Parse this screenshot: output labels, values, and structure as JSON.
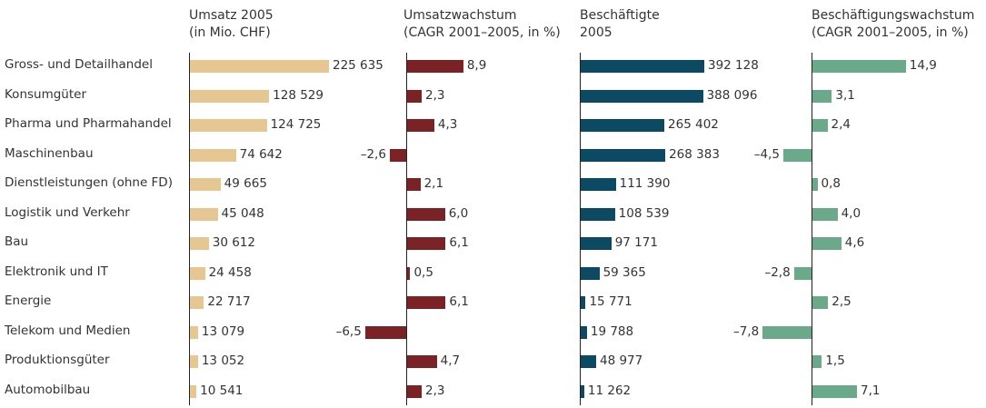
{
  "chart_data": {
    "type": "bar",
    "orientation": "horizontal",
    "categories": [
      "Gross- und Detailhandel",
      "Konsumgüter",
      "Pharma und Pharmahandel",
      "Maschinenbau",
      "Dienstleistungen (ohne FD)",
      "Logistik und Verkehr",
      "Bau",
      "Elektronik und IT",
      "Energie",
      "Telekom und Medien",
      "Produktionsgüter",
      "Automobilbau"
    ],
    "series": [
      {
        "name": "Umsatz 2005\n(in Mio. CHF)",
        "color": "#e6c791",
        "values": [
          225635,
          128529,
          124725,
          74642,
          49665,
          45048,
          30612,
          24458,
          22717,
          13079,
          13052,
          10541
        ],
        "value_labels": [
          "225 635",
          "128 529",
          "124 725",
          "74 642",
          "49 665",
          "45 048",
          "30 612",
          "24 458",
          "22 717",
          "13 079",
          "13 052",
          "10 541"
        ]
      },
      {
        "name": "Umsatzwachstum\n(CAGR 2001–2005, in %)",
        "color": "#7a2226",
        "values": [
          8.9,
          2.3,
          4.3,
          -2.6,
          2.1,
          6.0,
          6.1,
          0.5,
          6.1,
          -6.5,
          4.7,
          2.3
        ],
        "value_labels": [
          "8,9",
          "2,3",
          "4,3",
          "–2,6",
          "2,1",
          "6,0",
          "6,1",
          "0,5",
          "6,1",
          "–6,5",
          "4,7",
          "2,3"
        ]
      },
      {
        "name": "Beschäftigte\n2005",
        "color": "#0c4962",
        "values": [
          392128,
          388096,
          265402,
          268383,
          111390,
          108539,
          97171,
          59365,
          15771,
          19788,
          48977,
          11262
        ],
        "value_labels": [
          "392 128",
          "388 096",
          "265 402",
          "268 383",
          "111 390",
          "108 539",
          "97 171",
          "59 365",
          "15 771",
          "19 788",
          "48 977",
          "11 262"
        ]
      },
      {
        "name": "Beschäftigungswachstum\n(CAGR 2001–2005, in %)",
        "color": "#6aa98a",
        "values": [
          14.9,
          3.1,
          2.4,
          -4.5,
          0.8,
          4.0,
          4.6,
          -2.8,
          2.5,
          -7.8,
          1.5,
          7.1
        ],
        "value_labels": [
          "14,9",
          "3,1",
          "2,4",
          "–4,5",
          "0,8",
          "4,0",
          "4,6",
          "–2,8",
          "2,5",
          "–7,8",
          "1,5",
          "7,1"
        ]
      }
    ]
  }
}
